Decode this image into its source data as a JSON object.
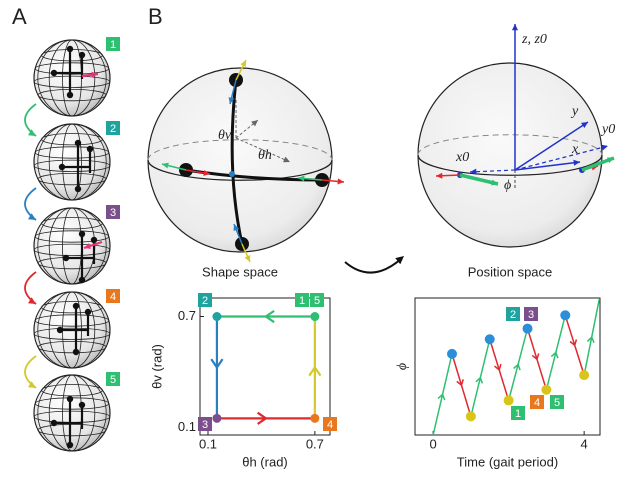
{
  "panel_a": {
    "label": "A",
    "steps": [
      "1",
      "2",
      "3",
      "4",
      "5"
    ]
  },
  "panel_b": {
    "label": "B",
    "shape_space": {
      "caption": "Shape space",
      "theta_v": "θv",
      "theta_h": "θh"
    },
    "position_space": {
      "caption": "Position space",
      "z": "z, z0",
      "y": "y",
      "y0": "y0",
      "x0": "x0",
      "x": "x",
      "phi": "ϕ"
    }
  },
  "chart_data": [
    {
      "type": "line",
      "xlabel": "θh (rad)",
      "ylabel": "θv (rad)",
      "xlim": [
        0.055,
        0.785
      ],
      "ylim": [
        0.06,
        0.8
      ],
      "xticks": [
        0.1,
        0.7
      ],
      "yticks": [
        0.1,
        0.7
      ],
      "corner_labels": [
        "1",
        "5",
        "2",
        "3",
        "4"
      ],
      "series": [
        {
          "color": "#2fbf71",
          "x": [
            0.7,
            0.15
          ],
          "values": [
            0.7,
            0.7
          ]
        },
        {
          "color": "#2a7fc1",
          "x": [
            0.15,
            0.15
          ],
          "values": [
            0.7,
            0.15
          ]
        },
        {
          "color": "#e0282e",
          "x": [
            0.15,
            0.7
          ],
          "values": [
            0.15,
            0.15
          ]
        },
        {
          "color": "#d4c82a",
          "x": [
            0.7,
            0.7
          ],
          "values": [
            0.15,
            0.7
          ]
        }
      ]
    },
    {
      "type": "line",
      "xlabel": "Time (gait period)",
      "ylabel": "ϕ",
      "xlim": [
        -0.48,
        4.42
      ],
      "ylim": [
        0,
        10.3
      ],
      "xticks": [
        0,
        4
      ],
      "corner_labels": [
        "2",
        "3",
        "1",
        "4",
        "5"
      ],
      "series": [
        {
          "color": "#2fbf71",
          "x": [
            0,
            0.5
          ],
          "values": [
            0,
            6.1
          ]
        },
        {
          "color": "#e0282e",
          "x": [
            0.5,
            1.0
          ],
          "values": [
            6.1,
            1.4
          ]
        },
        {
          "color": "#2fbf71",
          "x": [
            1.0,
            1.5
          ],
          "values": [
            1.4,
            7.2
          ]
        },
        {
          "color": "#e0282e",
          "x": [
            1.5,
            2.0
          ],
          "values": [
            7.2,
            2.6
          ]
        },
        {
          "color": "#2fbf71",
          "x": [
            2.0,
            2.5
          ],
          "values": [
            2.6,
            8.0
          ]
        },
        {
          "color": "#e0282e",
          "x": [
            2.5,
            3.0
          ],
          "values": [
            8.0,
            3.4
          ]
        },
        {
          "color": "#2fbf71",
          "x": [
            3.0,
            3.5
          ],
          "values": [
            3.4,
            9.0
          ]
        },
        {
          "color": "#e0282e",
          "x": [
            3.5,
            4.0
          ],
          "values": [
            9.0,
            4.5
          ]
        },
        {
          "color": "#2fbf71",
          "x": [
            4.0,
            4.4
          ],
          "values": [
            4.5,
            10.2
          ]
        }
      ],
      "markers": [
        {
          "color": "#2a8fd8",
          "x": [
            0.5,
            1.5,
            2.5,
            3.5
          ],
          "values": [
            6.1,
            7.2,
            8.0,
            9.0
          ]
        },
        {
          "color": "#d9c51a",
          "x": [
            1.0,
            2.0,
            3.0,
            4.0
          ],
          "values": [
            1.4,
            2.6,
            3.4,
            4.5
          ]
        }
      ]
    }
  ]
}
